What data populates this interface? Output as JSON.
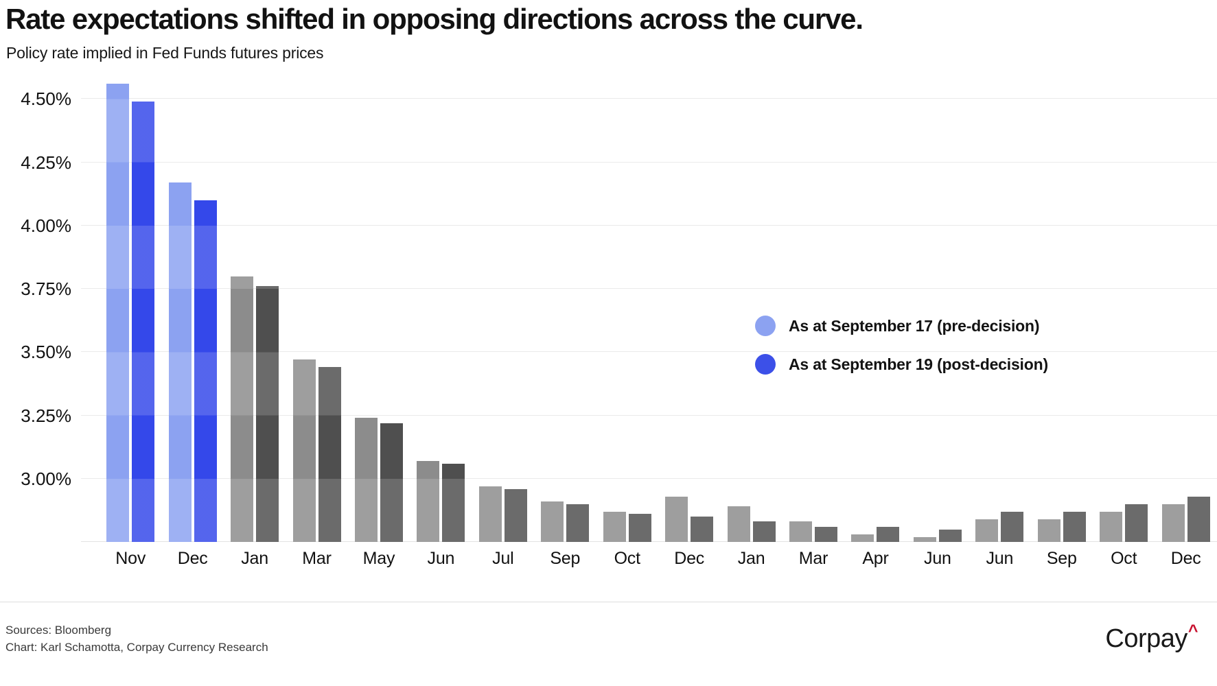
{
  "title": "Rate expectations shifted in opposing directions across the curve.",
  "subtitle": "Policy rate implied in Fed Funds futures prices",
  "legend": [
    {
      "label": "As at September 17 (pre-decision)",
      "color": "#8ca2f1"
    },
    {
      "label": "As at September 19 (post-decision)",
      "color": "#3c50e8"
    }
  ],
  "colors": {
    "pre_blue": "#8ca2f1",
    "post_blue": "#3448ea",
    "pre_gray": "#8c8c8c",
    "post_gray": "#4f4f4f",
    "gridline": "#eaeaea",
    "logo_caret_red": "#c8102e"
  },
  "footer": {
    "sources": "Sources: Bloomberg",
    "credit": "Chart: Karl Schamotta, Corpay Currency Research",
    "logo_text": "Corpay",
    "logo_caret": "^"
  },
  "chart_data": {
    "type": "bar",
    "title": "Rate expectations shifted in opposing directions across the curve.",
    "subtitle": "Policy rate implied in Fed Funds futures prices",
    "categories": [
      "Nov",
      "Dec",
      "Jan",
      "Mar",
      "May",
      "Jun",
      "Jul",
      "Sep",
      "Oct",
      "Dec",
      "Jan",
      "Mar",
      "Apr",
      "Jun",
      "Jun",
      "Sep",
      "Oct",
      "Dec"
    ],
    "series": [
      {
        "name": "As at September 17 (pre-decision)",
        "values": [
          4.56,
          4.17,
          3.8,
          3.47,
          3.24,
          3.07,
          2.97,
          2.91,
          2.87,
          2.93,
          2.89,
          2.83,
          2.78,
          2.77,
          2.84,
          2.84,
          2.87,
          2.9
        ]
      },
      {
        "name": "As at September 19 (post-decision)",
        "values": [
          4.49,
          4.1,
          3.76,
          3.44,
          3.22,
          3.06,
          2.96,
          2.9,
          2.86,
          2.85,
          2.83,
          2.81,
          2.81,
          2.8,
          2.87,
          2.87,
          2.9,
          2.93
        ]
      }
    ],
    "highlighted_category_count": 2,
    "yticks": [
      {
        "label": "3.00%",
        "value": 3.0
      },
      {
        "label": "3.25%",
        "value": 3.25
      },
      {
        "label": "3.50%",
        "value": 3.5
      },
      {
        "label": "3.75%",
        "value": 3.75
      },
      {
        "label": "4.00%",
        "value": 4.0
      },
      {
        "label": "4.25%",
        "value": 4.25
      },
      {
        "label": "4.50%",
        "value": 4.5
      }
    ],
    "ylim": [
      2.75,
      4.62
    ],
    "unit": "%",
    "grid": true,
    "legend_position": "middle-right"
  }
}
